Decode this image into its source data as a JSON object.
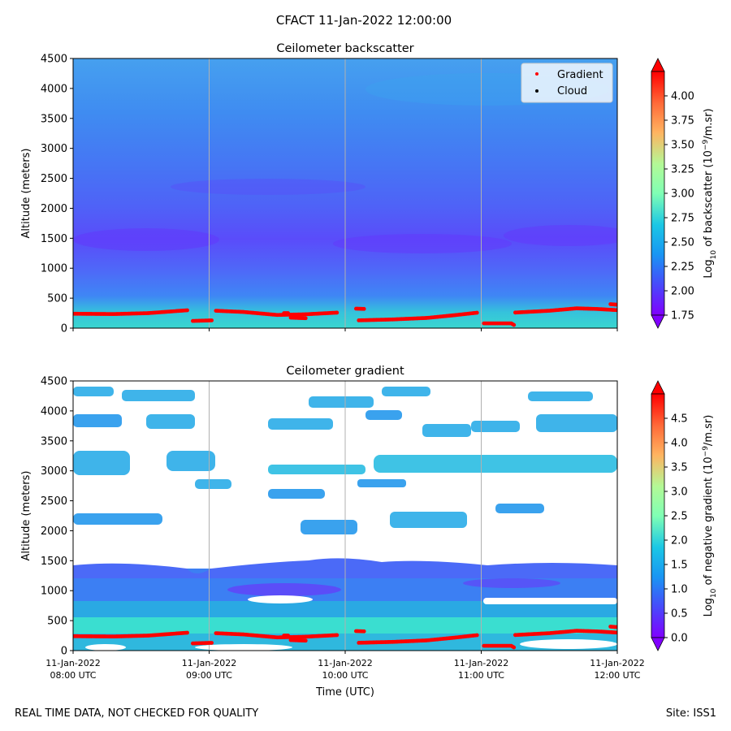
{
  "figure": {
    "title": "CFACT 11-Jan-2022 12:00:00",
    "footer_left": "REAL TIME DATA, NOT CHECKED FOR QUALITY",
    "footer_right": "Site: ISS1"
  },
  "chart_data": [
    {
      "type": "heatmap",
      "title": "Ceilometer backscatter",
      "xlabel": "",
      "ylabel": "Altitude (meters)",
      "ylim": [
        0,
        4500
      ],
      "yticks": [
        0,
        500,
        1000,
        1500,
        2000,
        2500,
        3000,
        3500,
        4000,
        4500
      ],
      "xlim_hours": [
        8,
        12
      ],
      "colorbar": {
        "label_html": "Log<tspan baseline-shift='sub' font-size='9'>10</tspan> of backscatter (10<tspan baseline-shift='super' font-size='9'>−9</tspan>/m.sr)",
        "label_plain": "Log10 of backscatter (10^-9/m.sr)",
        "range": [
          1.75,
          4.25
        ],
        "ticks": [
          "1.75",
          "2.00",
          "2.25",
          "2.50",
          "2.75",
          "3.00",
          "3.25",
          "3.50",
          "3.75",
          "4.00"
        ],
        "extend": "both"
      },
      "legend": {
        "position": "top-right",
        "entries": [
          {
            "label": "Gradient",
            "color": "#ff0000"
          },
          {
            "label": "Cloud",
            "color": "#000000"
          }
        ]
      },
      "gradient_layer_height_m": [
        {
          "t": 8.0,
          "h": 240
        },
        {
          "t": 8.3,
          "h": 235
        },
        {
          "t": 8.55,
          "h": 250
        },
        {
          "t": 8.85,
          "h": 300
        },
        {
          "t": 9.05,
          "h": 290
        },
        {
          "t": 9.25,
          "h": 270
        },
        {
          "t": 9.5,
          "h": 220
        },
        {
          "t": 9.7,
          "h": 230
        },
        {
          "t": 9.95,
          "h": 260
        },
        {
          "t": 10.1,
          "h": 130
        },
        {
          "t": 10.35,
          "h": 145
        },
        {
          "t": 10.6,
          "h": 170
        },
        {
          "t": 10.8,
          "h": 215
        },
        {
          "t": 10.98,
          "h": 260
        },
        {
          "t": 11.25,
          "h": 260
        },
        {
          "t": 11.5,
          "h": 290
        },
        {
          "t": 11.7,
          "h": 330
        },
        {
          "t": 11.85,
          "h": 320
        },
        {
          "t": 12.0,
          "h": 300
        }
      ],
      "gradient_secondary_m": [
        {
          "t": 8.88,
          "h": 120
        },
        {
          "t": 9.03,
          "h": 130
        },
        {
          "t": 9.55,
          "h": 250
        },
        {
          "t": 9.6,
          "h": 175
        },
        {
          "t": 9.72,
          "h": 165
        },
        {
          "t": 10.08,
          "h": 325
        },
        {
          "t": 10.15,
          "h": 320
        },
        {
          "t": 11.02,
          "h": 80
        },
        {
          "t": 11.22,
          "h": 80
        },
        {
          "t": 11.25,
          "h": 40
        },
        {
          "t": 11.95,
          "h": 400
        },
        {
          "t": 12.0,
          "h": 390
        }
      ]
    },
    {
      "type": "heatmap",
      "title": "Ceilometer gradient",
      "xlabel": "Time (UTC)",
      "ylabel": "Altitude (meters)",
      "ylim": [
        0,
        4500
      ],
      "yticks": [
        0,
        500,
        1000,
        1500,
        2000,
        2500,
        3000,
        3500,
        4000,
        4500
      ],
      "xlim_hours": [
        8,
        12
      ],
      "xticks": [
        {
          "date": "11-Jan-2022",
          "time": "08:00 UTC"
        },
        {
          "date": "11-Jan-2022",
          "time": "09:00 UTC"
        },
        {
          "date": "11-Jan-2022",
          "time": "10:00 UTC"
        },
        {
          "date": "11-Jan-2022",
          "time": "11:00 UTC"
        },
        {
          "date": "11-Jan-2022",
          "time": "12:00 UTC"
        }
      ],
      "colorbar": {
        "label_html": "Log<tspan baseline-shift='sub' font-size='9'>10</tspan> of negative gradient (10<tspan baseline-shift='super' font-size='9'>−9</tspan>/m.sr)",
        "label_plain": "Log10 of negative gradient (10^-9/m.sr)",
        "range": [
          0,
          5
        ],
        "ticks": [
          "0.0",
          "0.5",
          "1.0",
          "1.5",
          "2.0",
          "2.5",
          "3.0",
          "3.5",
          "4.0",
          "4.5"
        ],
        "extend": "both"
      },
      "gradient_layer_height_m": [
        {
          "t": 8.0,
          "h": 240
        },
        {
          "t": 8.3,
          "h": 235
        },
        {
          "t": 8.55,
          "h": 250
        },
        {
          "t": 8.85,
          "h": 300
        },
        {
          "t": 9.05,
          "h": 290
        },
        {
          "t": 9.25,
          "h": 270
        },
        {
          "t": 9.5,
          "h": 220
        },
        {
          "t": 9.7,
          "h": 230
        },
        {
          "t": 9.95,
          "h": 260
        },
        {
          "t": 10.1,
          "h": 130
        },
        {
          "t": 10.35,
          "h": 145
        },
        {
          "t": 10.6,
          "h": 170
        },
        {
          "t": 10.8,
          "h": 215
        },
        {
          "t": 10.98,
          "h": 260
        },
        {
          "t": 11.25,
          "h": 260
        },
        {
          "t": 11.5,
          "h": 290
        },
        {
          "t": 11.7,
          "h": 330
        },
        {
          "t": 11.85,
          "h": 320
        },
        {
          "t": 12.0,
          "h": 300
        }
      ],
      "gradient_secondary_m": [
        {
          "t": 8.88,
          "h": 120
        },
        {
          "t": 9.03,
          "h": 130
        },
        {
          "t": 9.55,
          "h": 250
        },
        {
          "t": 9.6,
          "h": 175
        },
        {
          "t": 9.72,
          "h": 165
        },
        {
          "t": 10.08,
          "h": 325
        },
        {
          "t": 10.15,
          "h": 320
        },
        {
          "t": 11.02,
          "h": 80
        },
        {
          "t": 11.22,
          "h": 80
        },
        {
          "t": 11.25,
          "h": 40
        },
        {
          "t": 11.95,
          "h": 400
        },
        {
          "t": 12.0,
          "h": 390
        }
      ]
    }
  ]
}
